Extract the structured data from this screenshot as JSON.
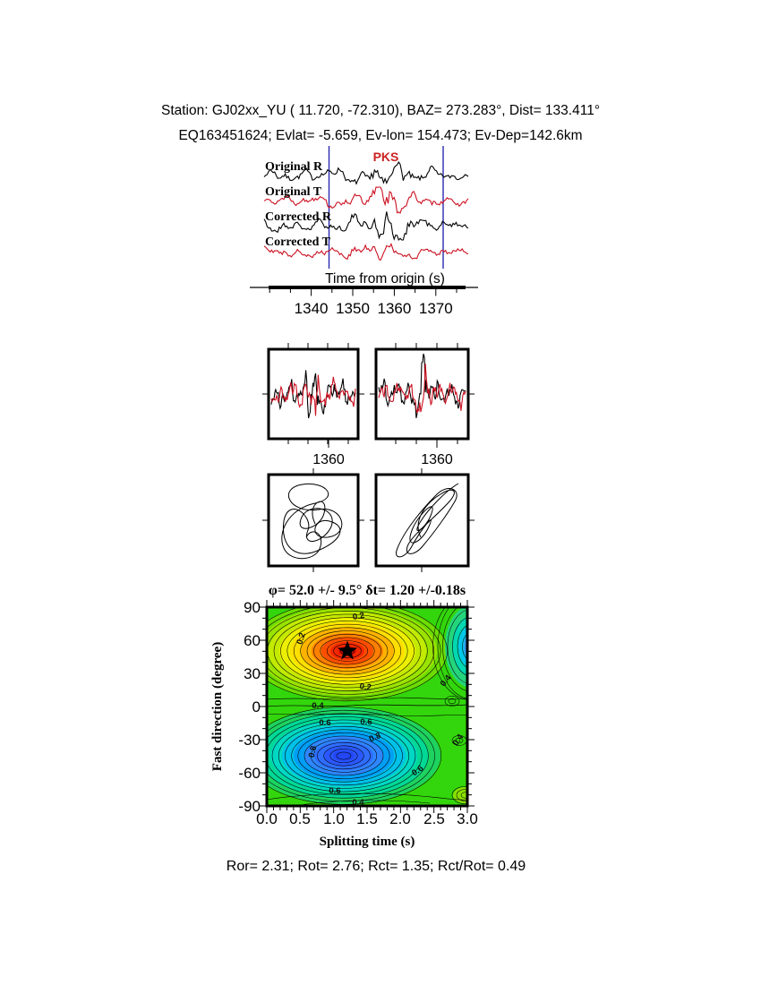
{
  "header": {
    "line1": "Station: GJ02xx_YU (  11.720,  -72.310), BAZ=  273.283°, Dist=  133.411°",
    "line2": "EQ163451624; Evlat=  -5.659, Ev-lon= 154.473; Ev-Dep=142.6km"
  },
  "waveform_section": {
    "phase_label": "PKS",
    "traces": [
      {
        "label": "Original R",
        "color": "#000000"
      },
      {
        "label": "Original T",
        "color": "#cc1122"
      },
      {
        "label": "Corrected R",
        "color": "#000000"
      },
      {
        "label": "Corrected T",
        "color": "#cc1122"
      }
    ],
    "window_color": "#2a2ab0",
    "axis_title": "Time from origin (s)",
    "time_ticks": [
      "1340",
      "1350",
      "1360",
      "1370"
    ]
  },
  "middle_panels": {
    "left_tick_label": "1360",
    "right_tick_label": "1360"
  },
  "contour": {
    "title": "φ= 52.0 +/- 9.5° δt= 1.20 +/-0.18s",
    "ylabel": "Fast direction (degree)",
    "xlabel": "Splitting time (s)",
    "yticks": [
      "90",
      "60",
      "30",
      "0",
      "-30",
      "-60",
      "-90"
    ],
    "xticks": [
      "0.0",
      "0.5",
      "1.0",
      "1.5",
      "2.0",
      "2.5",
      "3.0"
    ],
    "levels": {
      "l02": "0.2",
      "l04": "0.4",
      "l06": "0.6",
      "l08": "0.8"
    }
  },
  "footer": {
    "stats": "Ror= 2.31; Rot= 2.76; Rct= 1.35; Rct/Rot= 0.49"
  },
  "chart_data": [
    {
      "type": "line",
      "title": "Waveforms (radial / transverse, original and corrected)",
      "xlabel": "Time from origin (s)",
      "xlim": [
        1330,
        1378
      ],
      "x_ticks": [
        1340,
        1350,
        1360,
        1370
      ],
      "series": [
        {
          "name": "Original R",
          "color": "#000000"
        },
        {
          "name": "Original T",
          "color": "#cc1122"
        },
        {
          "name": "Corrected R",
          "color": "#000000"
        },
        {
          "name": "Corrected T",
          "color": "#cc1122"
        }
      ],
      "annotations": [
        "PKS phase marker",
        "analysis window 1343-1371 s (blue lines)"
      ]
    },
    {
      "type": "line",
      "title": "Windowed fast/slow waveform pairs",
      "x_tick_label": 1360,
      "panels": 2
    },
    {
      "type": "scatter",
      "title": "Particle motion before (left, elliptical) and after (right, linearized) correction",
      "panels": 2
    },
    {
      "type": "heatmap",
      "title": "φ= 52.0 +/- 9.5° δt= 1.20 +/-0.18s",
      "xlabel": "Splitting time (s)",
      "ylabel": "Fast direction (degree)",
      "xlim": [
        0.0,
        3.0
      ],
      "ylim": [
        -90,
        90
      ],
      "x_ticks": [
        0.0,
        0.5,
        1.0,
        1.5,
        2.0,
        2.5,
        3.0
      ],
      "y_ticks": [
        90,
        60,
        30,
        0,
        -30,
        -60,
        -90
      ],
      "contour_levels": [
        0.2,
        0.4,
        0.6,
        0.8
      ],
      "best_solution": {
        "splitting_time_s": 1.2,
        "splitting_time_err_s": 0.18,
        "fast_direction_deg": 52.0,
        "fast_direction_err_deg": 9.5
      },
      "star_marker": {
        "x": 1.2,
        "y": 52
      },
      "energy_maximum_red": {
        "x": 1.2,
        "y": 52
      },
      "energy_minimum_blue": {
        "x": 1.15,
        "y": -45
      },
      "secondary_low_right_edge": {
        "x": 3.0,
        "y": 55
      },
      "colormap": {
        "high": "#e31000",
        "mid": "#ffdf00",
        "background": "#33d60c",
        "low_mid": "#00d8c4",
        "low": "#2347f7"
      }
    }
  ]
}
